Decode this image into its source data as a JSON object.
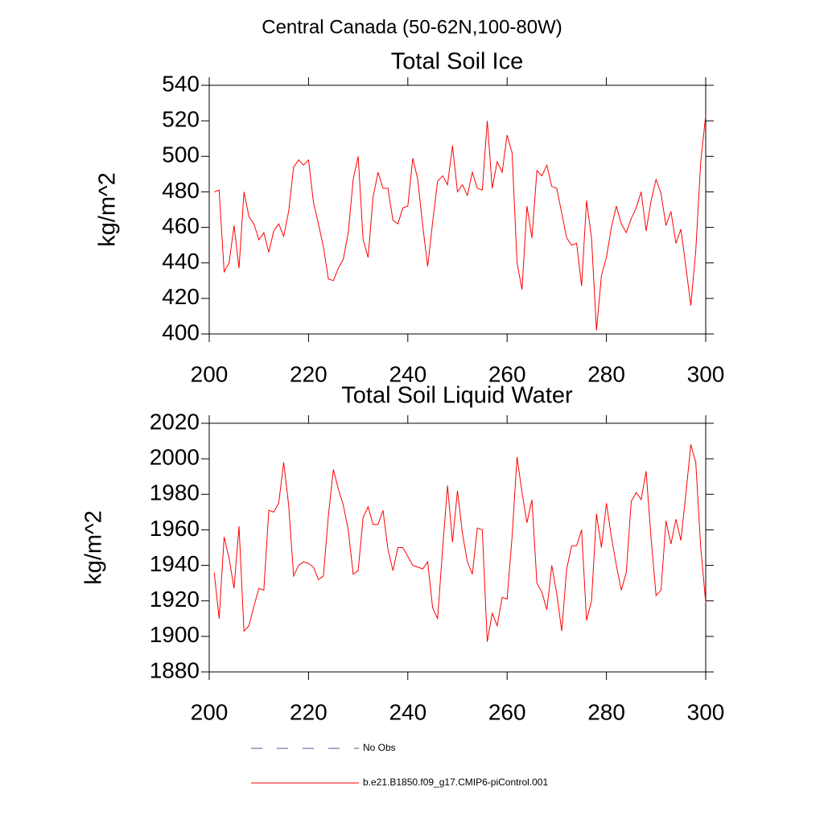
{
  "title": "Central Canada (50-62N,100-80W)",
  "legend": [
    {
      "name": "No Obs",
      "color": "#4a5a8a",
      "dashed": true
    },
    {
      "name": "b.e21.B1850.f09_g17.CMIP6-piControl.001",
      "color": "#ff0000",
      "dashed": false
    }
  ],
  "chart_data": [
    {
      "type": "line",
      "title": "Total Soil Ice",
      "y_label": "kg/m^2",
      "xlim": [
        200,
        300
      ],
      "xticks": [
        200,
        220,
        240,
        260,
        280,
        300
      ],
      "ylim": [
        400,
        540
      ],
      "yticks": [
        400,
        420,
        440,
        460,
        480,
        500,
        520,
        540
      ],
      "x": [
        201,
        202,
        203,
        204,
        205,
        206,
        207,
        208,
        209,
        210,
        211,
        212,
        213,
        214,
        215,
        216,
        217,
        218,
        219,
        220,
        221,
        222,
        223,
        224,
        225,
        226,
        227,
        228,
        229,
        230,
        231,
        232,
        233,
        234,
        235,
        236,
        237,
        238,
        239,
        240,
        241,
        242,
        243,
        244,
        245,
        246,
        247,
        248,
        249,
        250,
        251,
        252,
        253,
        254,
        255,
        256,
        257,
        258,
        259,
        260,
        261,
        262,
        263,
        264,
        265,
        266,
        267,
        268,
        269,
        270,
        271,
        272,
        273,
        274,
        275,
        276,
        277,
        278,
        279,
        280,
        281,
        282,
        283,
        284,
        285,
        286,
        287,
        288,
        289,
        290,
        291,
        292,
        293,
        294,
        295,
        296,
        297,
        298,
        299,
        300
      ],
      "series": [
        {
          "color": "#ff0000",
          "values": [
            480,
            481,
            435,
            440,
            461,
            437,
            480,
            466,
            462,
            453,
            457,
            446,
            458,
            462,
            455,
            469,
            494,
            498,
            495,
            498,
            474,
            462,
            449,
            431,
            430,
            437,
            442,
            457,
            487,
            500,
            453,
            443,
            477,
            491,
            482,
            482,
            464,
            462,
            471,
            472,
            499,
            487,
            461,
            438,
            463,
            486,
            489,
            484,
            506,
            480,
            484,
            478,
            491,
            482,
            481,
            520,
            482,
            497,
            491,
            512,
            502,
            440,
            425,
            472,
            454,
            492,
            489,
            495,
            483,
            482,
            468,
            454,
            450,
            451,
            427,
            475,
            454,
            402,
            433,
            443,
            460,
            472,
            462,
            457,
            465,
            471,
            480,
            458,
            475,
            487,
            479,
            461,
            469,
            451,
            459,
            438,
            416,
            447,
            497,
            523
          ]
        }
      ]
    },
    {
      "type": "line",
      "title": "Total Soil Liquid Water",
      "y_label": "kg/m^2",
      "xlim": [
        200,
        300
      ],
      "xticks": [
        200,
        220,
        240,
        260,
        280,
        300
      ],
      "ylim": [
        1880,
        2020
      ],
      "yticks": [
        1880,
        1900,
        1920,
        1940,
        1960,
        1980,
        2000,
        2020
      ],
      "x": [
        201,
        202,
        203,
        204,
        205,
        206,
        207,
        208,
        209,
        210,
        211,
        212,
        213,
        214,
        215,
        216,
        217,
        218,
        219,
        220,
        221,
        222,
        223,
        224,
        225,
        226,
        227,
        228,
        229,
        230,
        231,
        232,
        233,
        234,
        235,
        236,
        237,
        238,
        239,
        240,
        241,
        242,
        243,
        244,
        245,
        246,
        247,
        248,
        249,
        250,
        251,
        252,
        253,
        254,
        255,
        256,
        257,
        258,
        259,
        260,
        261,
        262,
        263,
        264,
        265,
        266,
        267,
        268,
        269,
        270,
        271,
        272,
        273,
        274,
        275,
        276,
        277,
        278,
        279,
        280,
        281,
        282,
        283,
        284,
        285,
        286,
        287,
        288,
        289,
        290,
        291,
        292,
        293,
        294,
        295,
        296,
        297,
        298,
        299,
        300
      ],
      "series": [
        {
          "color": "#ff0000",
          "values": [
            1936,
            1910,
            1956,
            1944,
            1927,
            1962,
            1903,
            1906,
            1917,
            1927,
            1926,
            1971,
            1970,
            1975,
            1998,
            1974,
            1934,
            1940,
            1942,
            1941,
            1939,
            1932,
            1934,
            1968,
            1994,
            1983,
            1974,
            1960,
            1935,
            1937,
            1967,
            1973,
            1963,
            1963,
            1971,
            1949,
            1937,
            1950,
            1950,
            1945,
            1940,
            1939,
            1938,
            1942,
            1916,
            1910,
            1949,
            1985,
            1953,
            1982,
            1958,
            1942,
            1935,
            1961,
            1960,
            1897,
            1913,
            1906,
            1922,
            1921,
            1956,
            2001,
            1981,
            1964,
            1977,
            1930,
            1925,
            1915,
            1940,
            1924,
            1903,
            1938,
            1951,
            1951,
            1960,
            1909,
            1920,
            1969,
            1950,
            1975,
            1956,
            1940,
            1926,
            1936,
            1976,
            1981,
            1977,
            1993,
            1955,
            1923,
            1926,
            1965,
            1952,
            1966,
            1954,
            1980,
            2008,
            1998,
            1950,
            1919
          ]
        }
      ]
    }
  ]
}
